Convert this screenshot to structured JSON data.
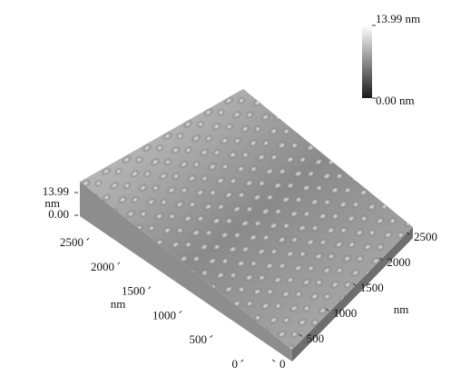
{
  "chart_data": {
    "type": "surface3d",
    "x_label": "nm",
    "y_label": "nm",
    "z_label": "nm",
    "xlim": [
      0,
      2500
    ],
    "xticks": [
      0,
      500,
      1000,
      1500,
      2000,
      2500
    ],
    "ylim": [
      0,
      2500
    ],
    "yticks": [
      0,
      500,
      1000,
      1500,
      2000,
      2500
    ],
    "zlim": [
      0,
      13.99
    ],
    "zticks": [
      {
        "value": 0,
        "label": "0.00"
      },
      13.99
    ],
    "colorbar": {
      "range": [
        0,
        13.99
      ],
      "ticks": [
        {
          "value": 13.99,
          "label": "13.99 nm"
        },
        {
          "value": 0,
          "label": "0.00 nm"
        }
      ],
      "colors": [
        "#1a1a1a",
        "#ffffff"
      ]
    }
  }
}
